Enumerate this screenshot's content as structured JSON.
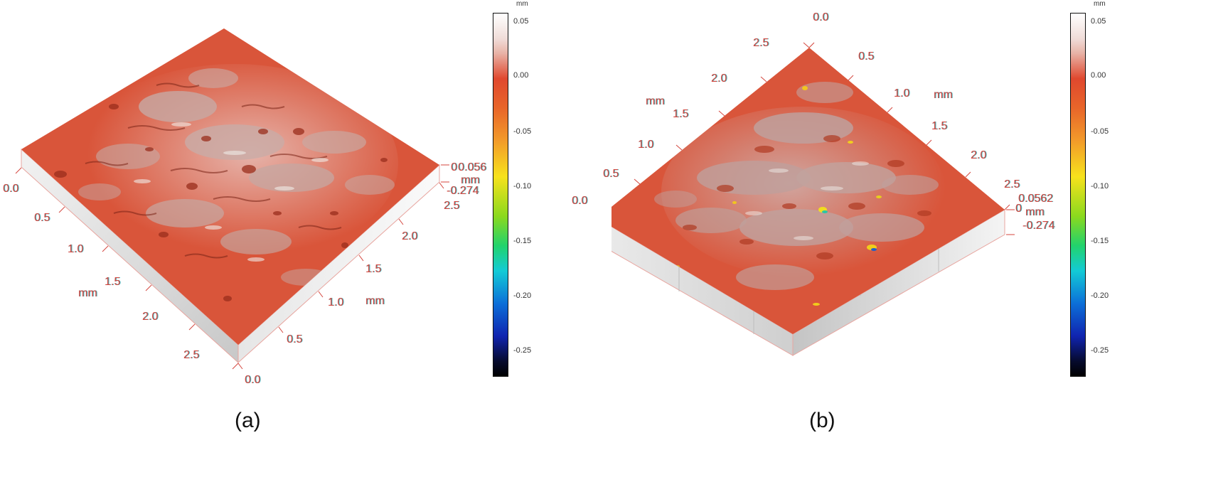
{
  "panels": [
    {
      "label": "(a)",
      "axis1_ticks": [
        "0.0",
        "0.5",
        "1.0",
        "1.5",
        "2.0",
        "2.5"
      ],
      "axis1_unit": "mm",
      "axis2_ticks": [
        "0.0",
        "0.5",
        "1.0",
        "1.5",
        "2.0",
        "2.5"
      ],
      "axis2_unit": "mm",
      "z_top": "0.056",
      "z_zero": "0",
      "z_unit": "mm",
      "z_bottom": "-0.274",
      "colorbar_unit": "mm",
      "colorbar_ticks": [
        "0.05",
        "0.00",
        "-0.05",
        "-0.10",
        "-0.15",
        "-0.20",
        "-0.25"
      ]
    },
    {
      "label": "(b)",
      "axis1_ticks": [
        "0.0",
        "0.5",
        "1.0",
        "1.5",
        "2.0",
        "2.5"
      ],
      "axis1_unit": "mm",
      "axis2_ticks": [
        "0.0",
        "0.5",
        "1.0",
        "1.5",
        "2.0",
        "2.5"
      ],
      "axis2_unit": "mm",
      "z_top": "0.0562",
      "z_zero": "0",
      "z_unit": "mm",
      "z_bottom": "-0.274",
      "colorbar_unit": "mm",
      "colorbar_ticks": [
        "0.05",
        "0.00",
        "-0.05",
        "-0.10",
        "-0.15",
        "-0.20",
        "-0.25"
      ]
    }
  ],
  "colors": {
    "surface_base": "#d9553a",
    "surface_light": "#c9a9a5",
    "axis_label": "#d4463e",
    "axis_shadow": "#3fb9c4",
    "box_side": "#d8d8d8"
  }
}
